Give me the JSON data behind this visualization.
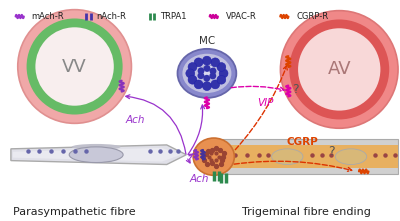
{
  "title_left": "Parasympathetic fibre",
  "title_right": "Trigeminal fibre ending",
  "label_VV": "VV",
  "label_AV": "AV",
  "label_MC": "MC",
  "label_Ach1": "Ach",
  "label_Ach2": "Ach",
  "label_VIP": "VIP",
  "label_CGRP": "CGRP",
  "label_Q1": "?",
  "label_Q2": "?",
  "legend_items": [
    "mAch-R",
    "nAch-R",
    "TRPA1",
    "VPAC-R",
    "CGRP-R"
  ],
  "legend_colors": [
    "#9933cc",
    "#4433aa",
    "#2d8a4e",
    "#cc0099",
    "#dd4400"
  ],
  "bg_color": "#ffffff",
  "fibre_left_color": "#d8d8e4",
  "fibre_right_inner": "#e8b060",
  "fibre_right_outer": "#c8c8c8",
  "fibre_outline": "#aaaaaa",
  "VV_outer": "#f0a8a8",
  "VV_ring": "#66bb66",
  "VV_inner": "#f8e8e8",
  "AV_outer": "#f08080",
  "AV_ring": "#dd5555",
  "AV_inner": "#f8d0d0",
  "MC_fill": "#8888cc",
  "MC_inner": "#b8b8e0",
  "terminal_fill": "#e89050",
  "dot_left": "#6666aa",
  "dot_right": "#994444",
  "purple": "#8833bb",
  "dark_purple": "#443399",
  "green": "#2d8a4e",
  "pink": "#dd00aa",
  "red": "#dd4400",
  "arrow_purple": "#9933cc",
  "arrow_red": "#dd3300"
}
